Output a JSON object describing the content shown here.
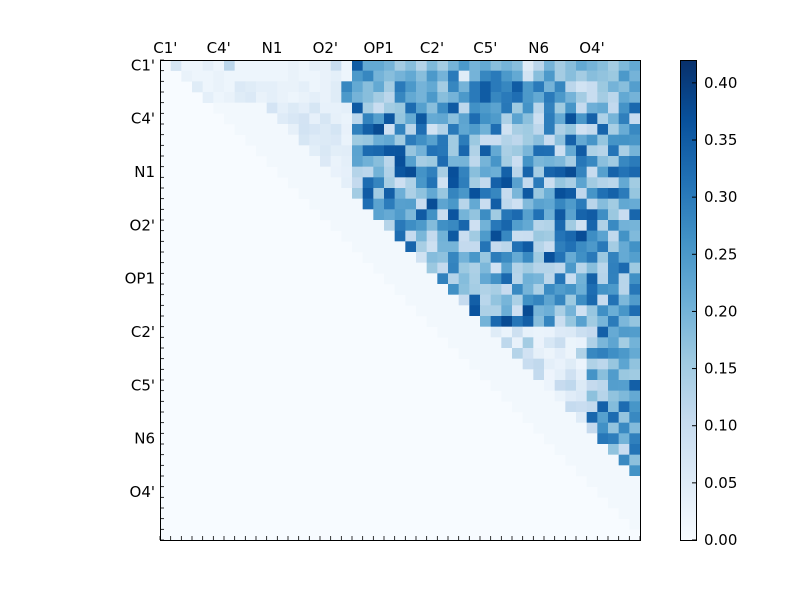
{
  "chart_data": {
    "type": "heatmap",
    "title": "",
    "xlabel": "",
    "ylabel": "",
    "n": 45,
    "x_tick_labels": [
      "C1'",
      "C4'",
      "N1",
      "O2'",
      "OP1",
      "C2'",
      "C5'",
      "N6",
      "O4'"
    ],
    "y_tick_labels": [
      "C1'",
      "C4'",
      "N1",
      "O2'",
      "OP1",
      "C2'",
      "C5'",
      "N6",
      "O4'"
    ],
    "label_step": 5,
    "colormap": "Blues",
    "colorbar": {
      "min": 0.0,
      "max": 0.42,
      "ticks": [
        "0.00",
        "0.05",
        "0.10",
        "0.15",
        "0.20",
        "0.25",
        "0.30",
        "0.35",
        "0.40"
      ]
    },
    "rows_i_upper_triangle_values": [
      [
        0.07,
        0.02,
        0.02,
        0.04,
        0.02,
        0.12,
        0.02,
        0.02,
        0.02,
        0.02,
        0.02,
        0.03,
        0.02,
        0.04,
        0.03,
        0.1,
        0.02,
        0.35,
        0.22,
        0.22,
        0.2,
        0.15,
        0.18,
        0.13,
        0.19,
        0.15,
        0.2,
        0.25,
        0.2,
        0.22,
        0.18,
        0.2,
        0.18,
        0.05,
        0.12,
        0.2,
        0.15,
        0.18,
        0.22,
        0.2,
        0.18,
        0.15,
        0.19,
        0.22
      ],
      [
        0.03,
        0.02,
        0.02,
        0.03,
        0.02,
        0.02,
        0.02,
        0.02,
        0.02,
        0.02,
        0.03,
        0.02,
        0.02,
        0.03,
        0.04,
        0.02,
        0.25,
        0.28,
        0.2,
        0.18,
        0.2,
        0.22,
        0.18,
        0.25,
        0.2,
        0.3,
        0.05,
        0.2,
        0.28,
        0.3,
        0.25,
        0.22,
        0.08,
        0.18,
        0.25,
        0.15,
        0.18,
        0.15,
        0.18,
        0.17,
        0.16,
        0.25,
        0.2
      ],
      [
        0.05,
        0.02,
        0.03,
        0.02,
        0.06,
        0.05,
        0.04,
        0.04,
        0.03,
        0.03,
        0.04,
        0.02,
        0.03,
        0.05,
        0.28,
        0.22,
        0.18,
        0.22,
        0.15,
        0.3,
        0.25,
        0.2,
        0.22,
        0.15,
        0.28,
        0.2,
        0.3,
        0.35,
        0.3,
        0.28,
        0.35,
        0.25,
        0.3,
        0.2,
        0.28,
        0.12,
        0.08,
        0.1,
        0.16,
        0.2,
        0.18
      ],
      [
        0.04,
        0.02,
        0.03,
        0.05,
        0.06,
        0.03,
        0.04,
        0.03,
        0.02,
        0.03,
        0.04,
        0.03,
        0.05,
        0.25,
        0.2,
        0.18,
        0.15,
        0.12,
        0.28,
        0.22,
        0.2,
        0.25,
        0.18,
        0.2,
        0.25,
        0.3,
        0.35,
        0.28,
        0.3,
        0.32,
        0.25,
        0.22,
        0.3,
        0.25,
        0.2,
        0.15,
        0.1,
        0.15,
        0.12,
        0.22,
        0.2
      ]
    ]
  }
}
